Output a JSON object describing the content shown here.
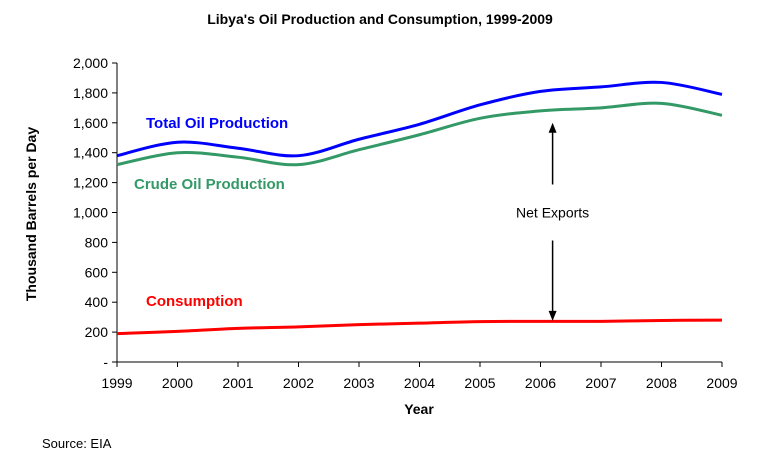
{
  "chart_data": {
    "type": "line",
    "title": "Libya's Oil Production and Consumption, 1999-2009",
    "xlabel": "Year",
    "ylabel": "Thousand Barrels per Day",
    "x": [
      1999,
      2000,
      2001,
      2002,
      2003,
      2004,
      2005,
      2006,
      2007,
      2008,
      2009
    ],
    "x_tick_labels": [
      "1999",
      "2000",
      "2001",
      "2002",
      "2003",
      "2004",
      "2005",
      "2006",
      "2007",
      "2008",
      "2009"
    ],
    "ylim": [
      0,
      2000
    ],
    "y_ticks": [
      0,
      200,
      400,
      600,
      800,
      1000,
      1200,
      1400,
      1600,
      1800,
      2000
    ],
    "y_tick_labels": [
      "-",
      "200",
      "400",
      "600",
      "800",
      "1,000",
      "1,200",
      "1,400",
      "1,600",
      "1,800",
      "2,000"
    ],
    "grid": false,
    "series": [
      {
        "name": "Total Oil Production",
        "color": "#0000ff",
        "values": [
          1380,
          1470,
          1430,
          1380,
          1490,
          1590,
          1720,
          1810,
          1840,
          1870,
          1790
        ]
      },
      {
        "name": "Crude Oil Production",
        "color": "#339966",
        "values": [
          1320,
          1400,
          1370,
          1320,
          1420,
          1520,
          1630,
          1680,
          1700,
          1730,
          1650
        ]
      },
      {
        "name": "Consumption",
        "color": "#ff0000",
        "values": [
          190,
          205,
          225,
          235,
          250,
          260,
          270,
          272,
          272,
          278,
          280
        ]
      }
    ],
    "annotations": [
      {
        "text": "Net Exports",
        "x": 2006.2,
        "y": 1000,
        "arrow_up_to": 1600,
        "arrow_down_to": 275
      }
    ]
  },
  "source": "Source: EIA"
}
